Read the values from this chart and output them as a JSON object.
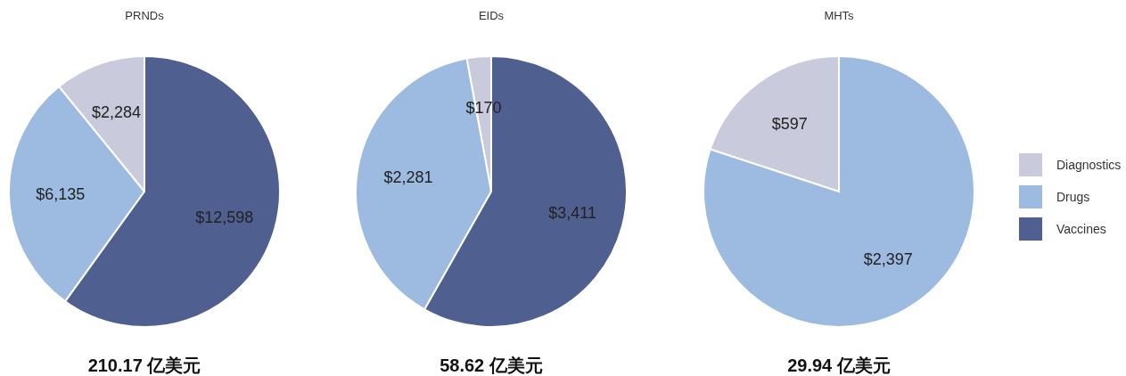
{
  "chart_data": [
    {
      "type": "pie",
      "title": "PRNDs",
      "categories": [
        null,
        null,
        null
      ],
      "values": [
        2284,
        6135,
        12598
      ],
      "colors": [
        "#c9cadb",
        "#9dbbe0",
        "#4f5f8f"
      ],
      "value_labels": [
        "$2,284",
        "$6,135",
        "$12,598"
      ],
      "annotations": [
        "210.17 亿美元"
      ]
    },
    {
      "type": "pie",
      "title": "EIDs",
      "categories": [
        null,
        null,
        null
      ],
      "values": [
        170,
        2281,
        3411
      ],
      "colors": [
        "#c9cadb",
        "#9dbbe0",
        "#4f5f8f"
      ],
      "value_labels": [
        "$170",
        "$2,281",
        "$3,411"
      ],
      "annotations": [
        "58.62 亿美元"
      ]
    },
    {
      "type": "pie",
      "title": "MHTs",
      "categories": [
        "Diagnostics",
        "Drugs",
        "Vaccines"
      ],
      "values": [
        597,
        2397,
        0
      ],
      "colors": [
        "#c9cadb",
        "#9dbbe0",
        "#4f5f8f"
      ],
      "value_labels": [
        "$597",
        "$2,397",
        null
      ],
      "annotations": [
        "29.94 亿美元"
      ],
      "legend": "right"
    }
  ]
}
